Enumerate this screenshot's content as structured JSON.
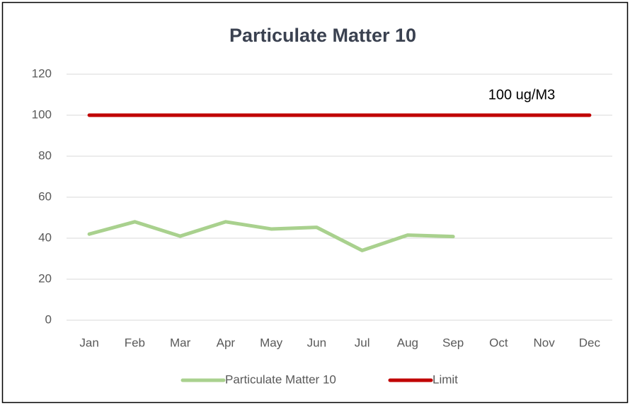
{
  "chart_data": {
    "type": "line",
    "title": "Particulate Matter 10",
    "categories": [
      "Jan",
      "Feb",
      "Mar",
      "Apr",
      "May",
      "Jun",
      "Jul",
      "Aug",
      "Sep",
      "Oct",
      "Nov",
      "Dec"
    ],
    "series": [
      {
        "name": "Particulate Matter 10",
        "color": "#a9d18e",
        "values": [
          42,
          48,
          41,
          48,
          44.5,
          45.3,
          34,
          41.5,
          40.8,
          null,
          null,
          null
        ]
      },
      {
        "name": "Limit",
        "color": "#c00000",
        "values": [
          100,
          100,
          100,
          100,
          100,
          100,
          100,
          100,
          100,
          100,
          100,
          100
        ]
      }
    ],
    "annotations": [
      "100 ug/M3"
    ],
    "ylim": [
      0,
      120
    ],
    "yticks": [
      0,
      20,
      40,
      60,
      80,
      100,
      120
    ],
    "grid": true,
    "legend": "bottom"
  }
}
